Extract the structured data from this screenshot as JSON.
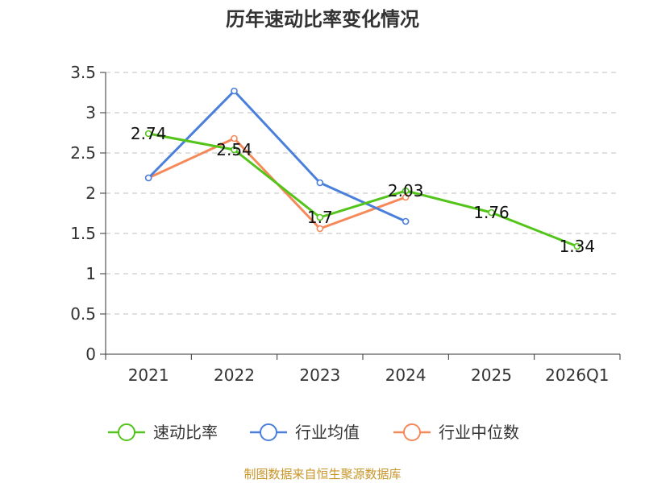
{
  "chart_data": {
    "type": "line",
    "title": "历年速动比率变化情况",
    "categories": [
      "2021",
      "2022",
      "2023",
      "2024",
      "2025",
      "2026Q1"
    ],
    "ylim": [
      0,
      3.5
    ],
    "yticks": [
      "0",
      "0.5",
      "1",
      "1.5",
      "2",
      "2.5",
      "3",
      "3.5"
    ],
    "grid": true,
    "legend_position": "bottom",
    "series": [
      {
        "name": "速动比率",
        "color": "#52c41a",
        "values": [
          2.74,
          2.54,
          1.7,
          2.03,
          1.76,
          1.34
        ],
        "value_labels": [
          "2.74",
          "2.54",
          "1.7",
          "2.03",
          "1.76",
          "1.34"
        ]
      },
      {
        "name": "行业均值",
        "color": "#4a7fdc",
        "values": [
          2.19,
          3.27,
          2.13,
          1.65,
          null,
          null
        ]
      },
      {
        "name": "行业中位数",
        "color": "#f5895a",
        "values": [
          2.19,
          2.68,
          1.56,
          1.95,
          null,
          null
        ]
      }
    ],
    "source": "制图数据来自恒生聚源数据库",
    "source_color": "#c8962a"
  }
}
